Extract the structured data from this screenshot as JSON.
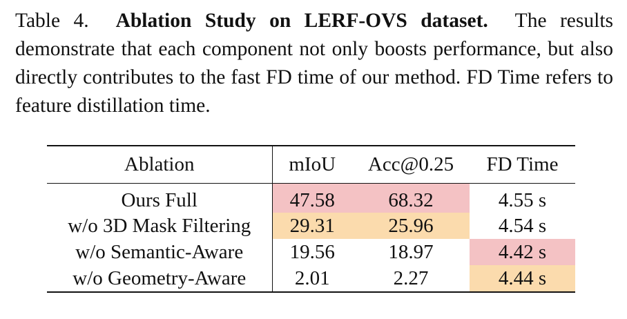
{
  "caption": {
    "label": "Table 4.",
    "title": "Ablation Study on LERF-OVS dataset.",
    "text": "The results demonstrate that each component not only boosts performance, but also directly contributes to the fast FD time of our method. FD Time refers to feature distillation time."
  },
  "table": {
    "headers": [
      "Ablation",
      "mIoU",
      "Acc@0.25",
      "FD Time"
    ],
    "rows": [
      {
        "ablation": "Ours Full",
        "miou": "47.58",
        "acc": "68.32",
        "fd": "4.55 s"
      },
      {
        "ablation": "w/o 3D Mask Filtering",
        "miou": "29.31",
        "acc": "25.96",
        "fd": "4.54 s"
      },
      {
        "ablation": "w/o Semantic-Aware",
        "miou": "19.56",
        "acc": "18.97",
        "fd": "4.42 s"
      },
      {
        "ablation": "w/o Geometry-Aware",
        "miou": "2.01",
        "acc": "2.27",
        "fd": "4.44 s"
      }
    ],
    "highlight_colors": {
      "best": "#f4c2c4",
      "second": "#fbdbad"
    }
  }
}
